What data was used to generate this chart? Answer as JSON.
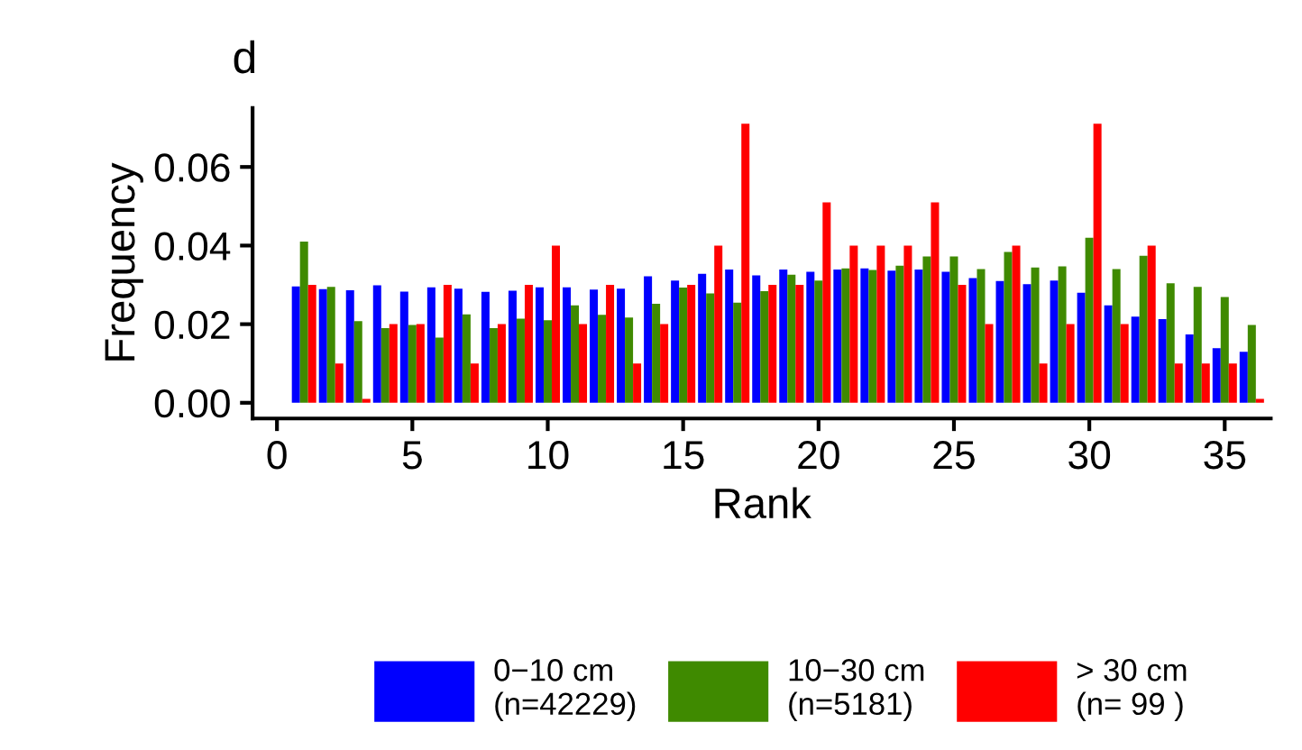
{
  "chart_data": {
    "type": "bar",
    "title": "d",
    "xlabel": "Rank",
    "ylabel": "Frequency",
    "x": [
      1,
      2,
      3,
      4,
      5,
      6,
      7,
      8,
      9,
      10,
      11,
      12,
      13,
      14,
      15,
      16,
      17,
      18,
      19,
      20,
      21,
      22,
      23,
      24,
      25,
      26,
      27,
      28,
      29,
      30,
      31,
      32,
      33,
      34,
      35,
      36
    ],
    "series": [
      {
        "name": "0−10 cm\n(n=42229)",
        "color": "#0000ff",
        "values": [
          0.0296,
          0.0289,
          0.0286,
          0.0299,
          0.0283,
          0.0294,
          0.029,
          0.0282,
          0.0285,
          0.0294,
          0.0294,
          0.0288,
          0.029,
          0.0322,
          0.0311,
          0.0328,
          0.0339,
          0.0324,
          0.0339,
          0.0333,
          0.0339,
          0.0342,
          0.0336,
          0.0339,
          0.0333,
          0.0317,
          0.031,
          0.0302,
          0.0311,
          0.028,
          0.0248,
          0.0219,
          0.0213,
          0.0174,
          0.0139,
          0.013
        ]
      },
      {
        "name": "10−30 cm\n(n=5181)",
        "color": "#3f8a00",
        "values": [
          0.041,
          0.0295,
          0.0208,
          0.019,
          0.0198,
          0.0166,
          0.0225,
          0.019,
          0.0214,
          0.021,
          0.0248,
          0.0224,
          0.0217,
          0.0252,
          0.0293,
          0.0278,
          0.0255,
          0.0284,
          0.0326,
          0.0311,
          0.0342,
          0.0338,
          0.0349,
          0.0372,
          0.0372,
          0.034,
          0.0384,
          0.0344,
          0.0347,
          0.042,
          0.034,
          0.0374,
          0.0304,
          0.0295,
          0.0269,
          0.0198
        ]
      },
      {
        "name": "> 30 cm\n(n= 99 )",
        "color": "#ff0000",
        "values": [
          0.03,
          0.01,
          0.001,
          0.02,
          0.02,
          0.03,
          0.01,
          0.02,
          0.03,
          0.04,
          0.02,
          0.03,
          0.01,
          0.02,
          0.03,
          0.04,
          0.071,
          0.03,
          0.03,
          0.051,
          0.04,
          0.04,
          0.04,
          0.051,
          0.03,
          0.02,
          0.04,
          0.01,
          0.02,
          0.071,
          0.02,
          0.04,
          0.01,
          0.01,
          0.01,
          0.001
        ]
      }
    ],
    "xlim": [
      -0.9,
      36.7
    ],
    "ylim": [
      -0.004,
      0.075
    ],
    "xticks": [
      0,
      5,
      10,
      15,
      20,
      25,
      30,
      35
    ],
    "yticks": [
      {
        "value": 0,
        "label": "0.00"
      },
      {
        "value": 0.02,
        "label": "0.02"
      },
      {
        "value": 0.04,
        "label": "0.04"
      },
      {
        "value": 0.06,
        "label": "0.06"
      }
    ],
    "grid": false,
    "legend": "bottom"
  }
}
